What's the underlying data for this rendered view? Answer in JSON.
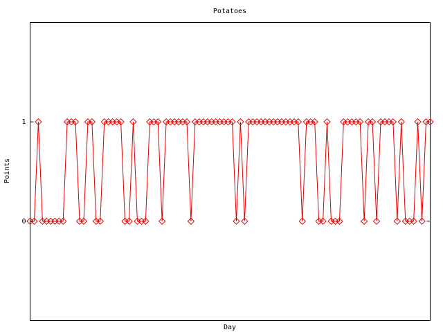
{
  "chart_data": {
    "type": "line",
    "title": "Potatoes",
    "x_label": "Day",
    "y_label": "Points",
    "values": [
      0,
      0,
      1,
      0,
      0,
      0,
      0,
      0,
      0,
      1,
      1,
      1,
      0,
      0,
      1,
      1,
      0,
      0,
      1,
      1,
      1,
      1,
      1,
      0,
      0,
      1,
      0,
      0,
      0,
      1,
      1,
      1,
      0,
      1,
      1,
      1,
      1,
      1,
      1,
      0,
      1,
      1,
      1,
      1,
      1,
      1,
      1,
      1,
      1,
      1,
      0,
      1,
      0,
      1,
      1,
      1,
      1,
      1,
      1,
      1,
      1,
      1,
      1,
      1,
      1,
      1,
      0,
      1,
      1,
      1,
      0,
      0,
      1,
      0,
      0,
      0,
      1,
      1,
      1,
      1,
      1,
      0,
      1,
      1,
      0,
      1,
      1,
      1,
      1,
      0,
      1,
      0,
      0,
      0,
      1,
      0,
      1,
      1
    ],
    "color": "#e00000",
    "ylim": [
      -1,
      2
    ],
    "yticks": [
      0,
      1
    ]
  }
}
